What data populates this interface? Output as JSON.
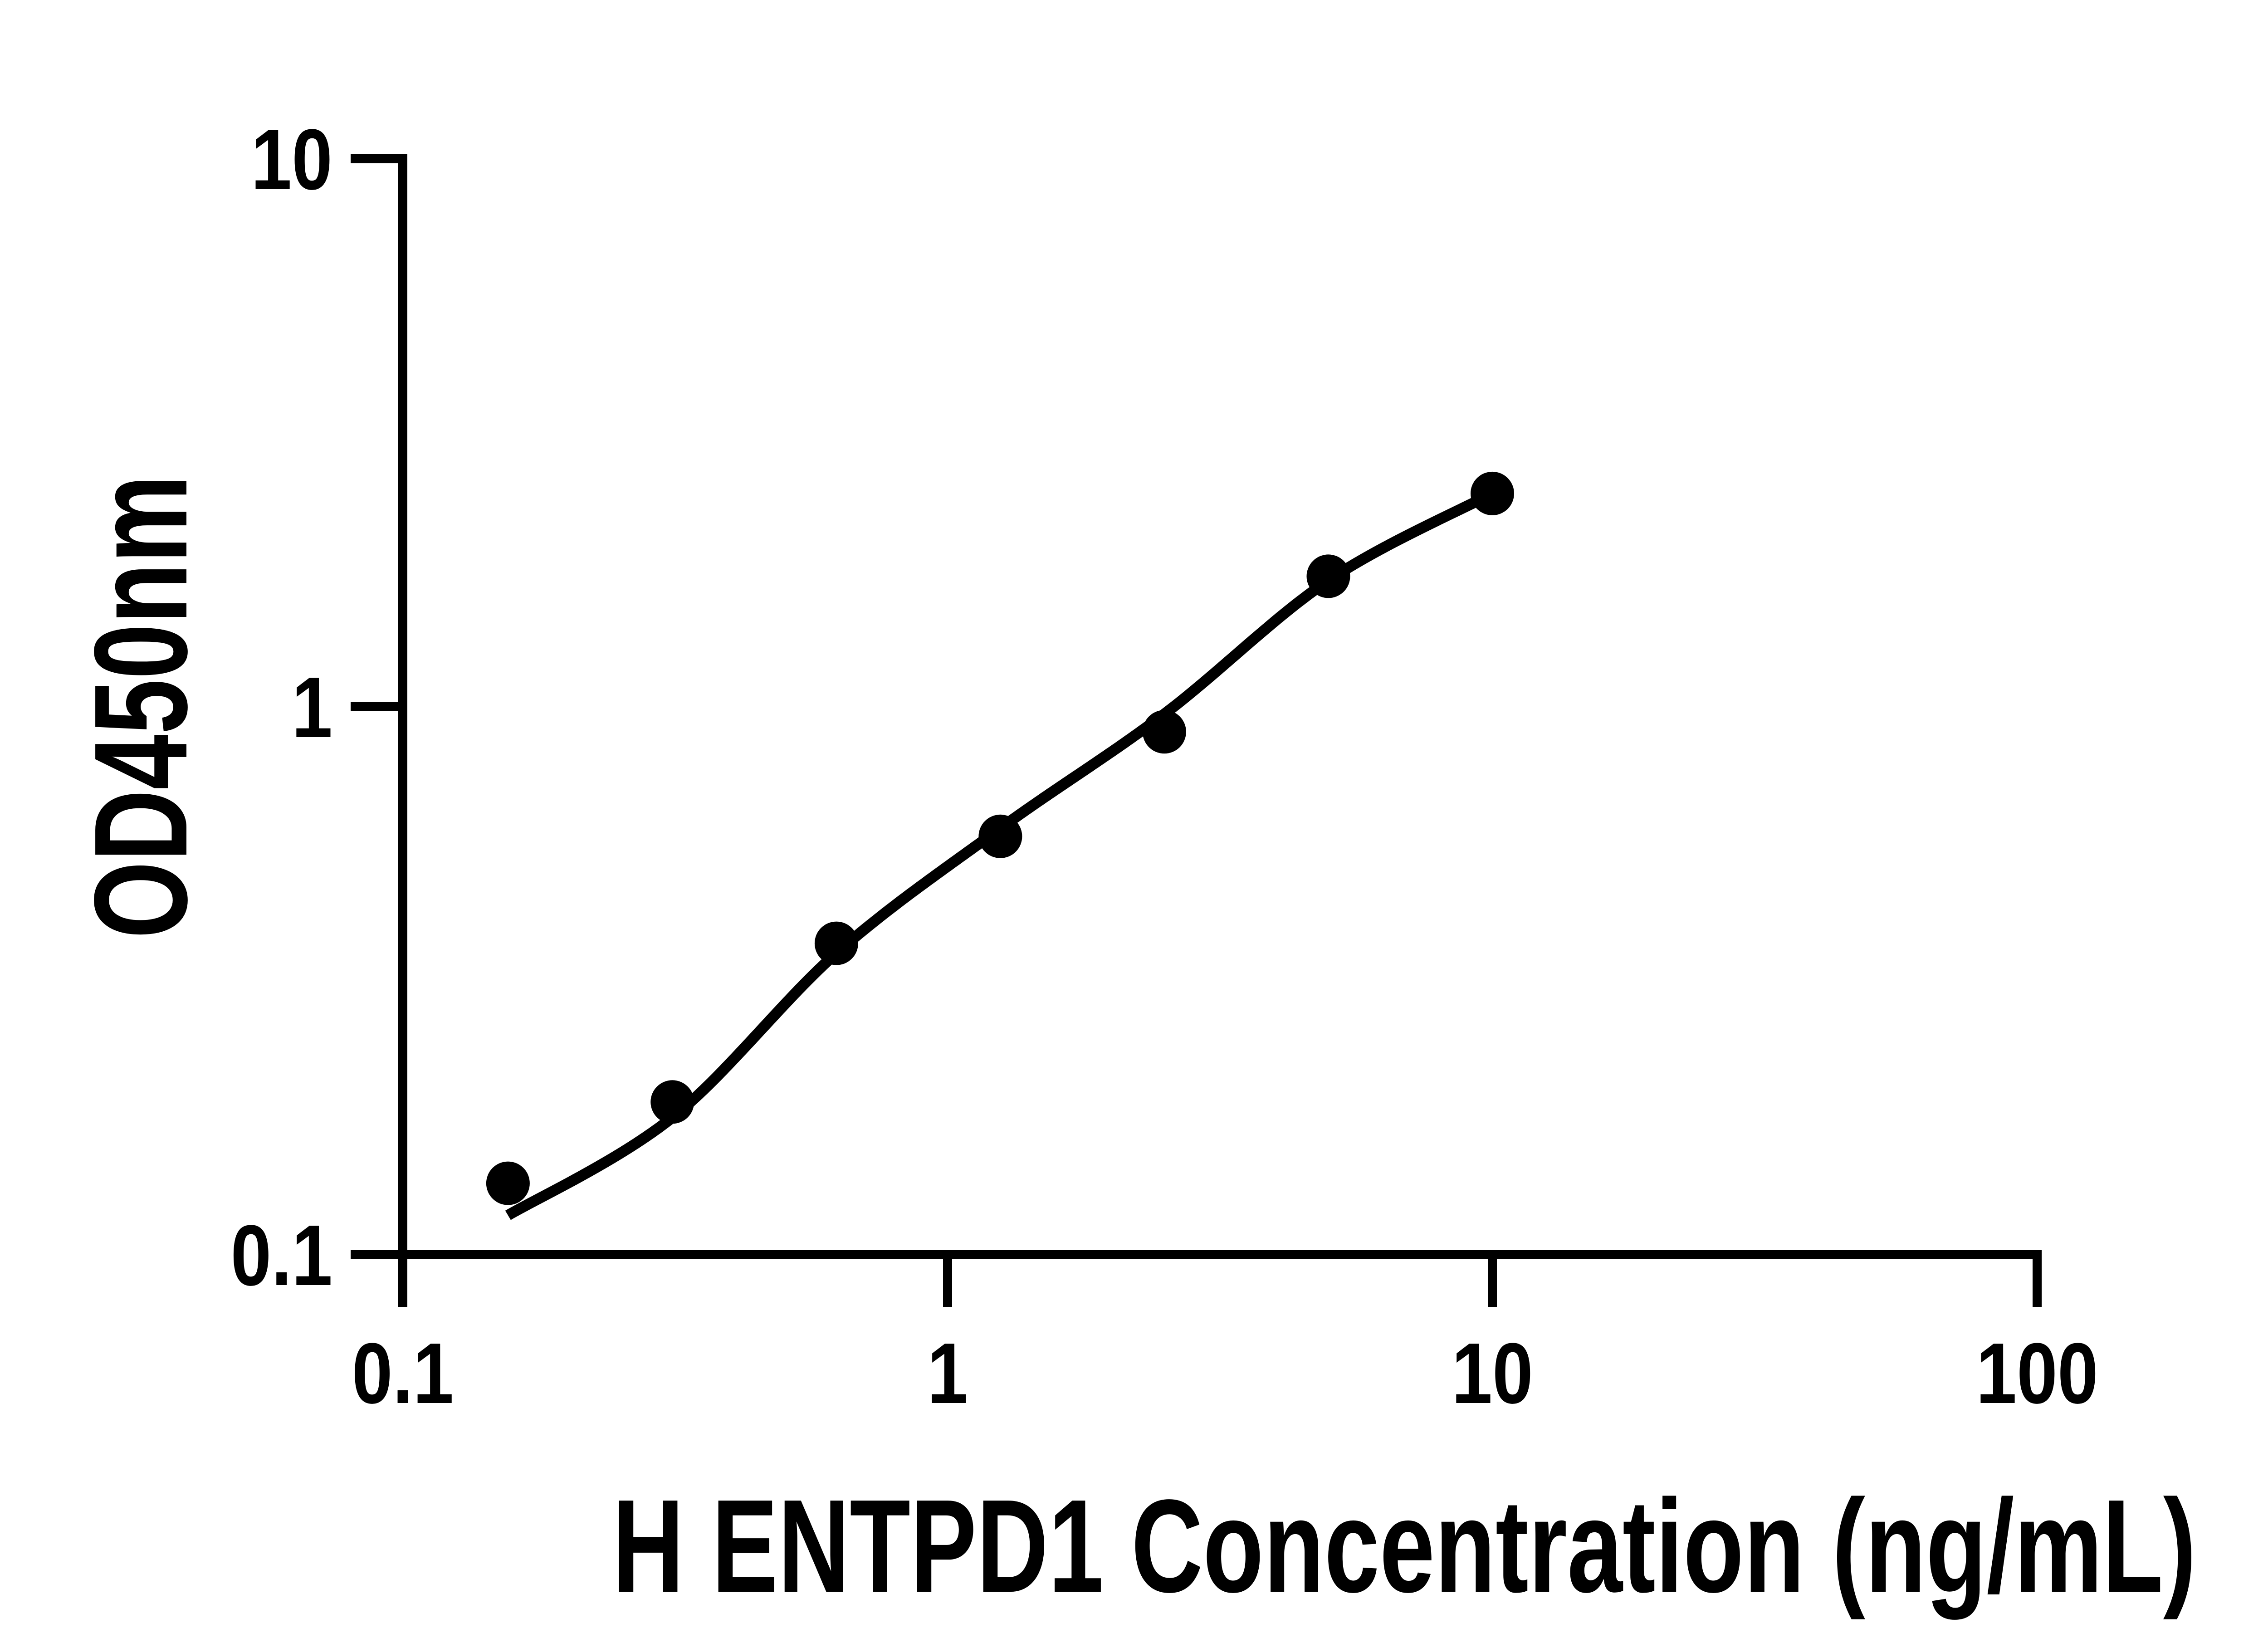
{
  "figure": {
    "background_color": "#ffffff",
    "foreground_color": "#000000"
  },
  "chart_data": {
    "type": "scatter",
    "title": "",
    "xlabel": "H ENTPD1 Concentration (ng/mL)",
    "ylabel": "OD450nm",
    "x_axis": {
      "scale": "log",
      "min": 0.1,
      "max": 100,
      "ticks": [
        {
          "v": 0.1,
          "label": "0.1"
        },
        {
          "v": 1,
          "label": "1"
        },
        {
          "v": 10,
          "label": "10"
        },
        {
          "v": 100,
          "label": "100"
        }
      ]
    },
    "y_axis": {
      "scale": "log",
      "min": 0.1,
      "max": 10,
      "ticks": [
        {
          "v": 0.1,
          "label": "0.1"
        },
        {
          "v": 1,
          "label": "1"
        },
        {
          "v": 10,
          "label": "10"
        }
      ]
    },
    "grid": false,
    "legend": false,
    "series": [
      {
        "name": "standard-points",
        "kind": "scatter",
        "marker": "filled-circle",
        "color": "#000000",
        "points": [
          [
            0.156,
            0.135
          ],
          [
            0.3125,
            0.19
          ],
          [
            0.625,
            0.37
          ],
          [
            1.25,
            0.58
          ],
          [
            2.5,
            0.9
          ],
          [
            5,
            1.73
          ],
          [
            10,
            2.45
          ]
        ]
      },
      {
        "name": "fit-curve",
        "kind": "line",
        "color": "#000000",
        "points": [
          [
            0.156,
            0.118
          ],
          [
            0.3125,
            0.178
          ],
          [
            0.625,
            0.355
          ],
          [
            1.25,
            0.6
          ],
          [
            2.5,
            0.97
          ],
          [
            5,
            1.7
          ],
          [
            10,
            2.45
          ]
        ]
      }
    ]
  }
}
